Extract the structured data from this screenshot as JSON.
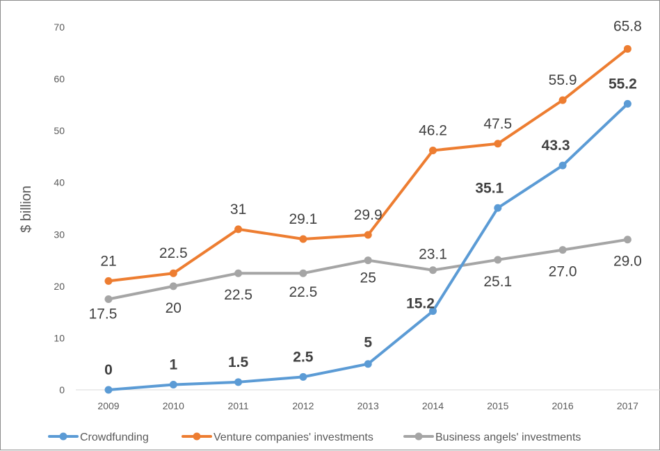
{
  "chart_data": {
    "type": "line",
    "title": "",
    "xlabel": "",
    "ylabel": "$ billion",
    "ylim": [
      0,
      70
    ],
    "yticks": [
      "0",
      "10",
      "20",
      "30",
      "40",
      "50",
      "60",
      "70"
    ],
    "categories": [
      "2009",
      "2010",
      "2011",
      "2012",
      "2013",
      "2014",
      "2015",
      "2016",
      "2017"
    ],
    "grid": false,
    "legend_position": "bottom",
    "series": [
      {
        "name": "Crowdfunding",
        "color": "#5b9bd5",
        "values": [
          0,
          1,
          1.5,
          2.5,
          5,
          15.2,
          35.1,
          43.3,
          55.2
        ],
        "labels": [
          "0",
          "1",
          "1.5",
          "2.5",
          "5",
          "15.2",
          "35.1",
          "43.3",
          "55.2"
        ],
        "label_bold": true
      },
      {
        "name": "Venture companies' investments",
        "color": "#ed7d31",
        "values": [
          21,
          22.5,
          31,
          29.1,
          29.9,
          46.2,
          47.5,
          55.9,
          65.8
        ],
        "labels": [
          "21",
          "22.5",
          "31",
          "29.1",
          "29.9",
          "46.2",
          "47.5",
          "55.9",
          "65.8"
        ],
        "label_bold": false
      },
      {
        "name": "Business angels' investments",
        "color": "#a5a5a5",
        "values": [
          17.5,
          20,
          22.5,
          22.5,
          25,
          23.1,
          25.1,
          27.0,
          29.0
        ],
        "labels": [
          "17.5",
          "20",
          "22.5",
          "22.5",
          "25",
          "23.1",
          "25.1",
          "27.0",
          "29.0"
        ],
        "label_bold": false
      }
    ]
  }
}
